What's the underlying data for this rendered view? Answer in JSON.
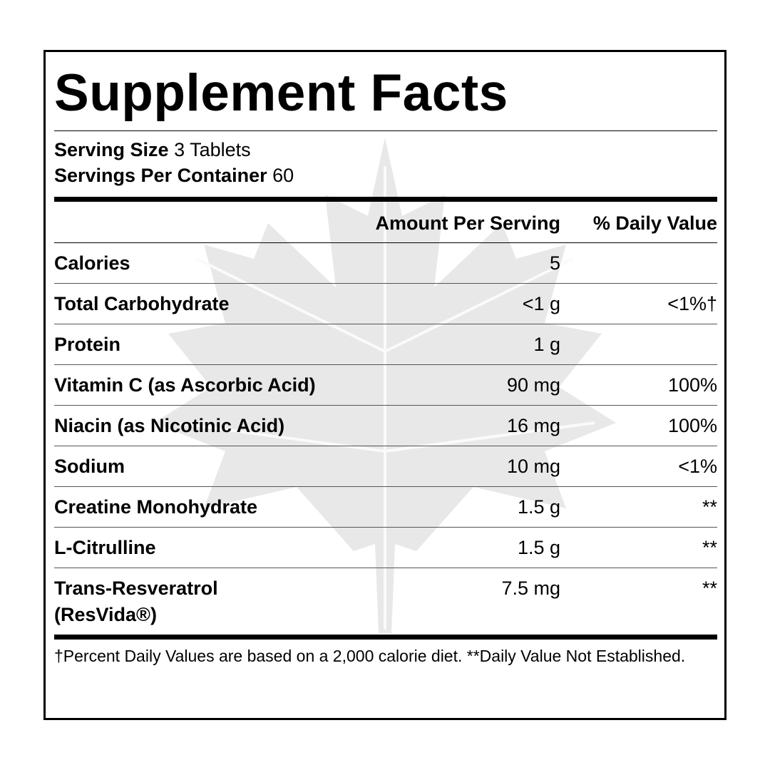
{
  "header": {
    "title": "Supplement Facts"
  },
  "serving": {
    "size_label": "Serving Size",
    "size_value": "3 Tablets",
    "per_container_label": "Servings Per Container",
    "per_container_value": "60"
  },
  "table": {
    "columns": [
      "Amount Per Serving",
      "% Daily Value"
    ],
    "rows": [
      {
        "name": "Calories",
        "amount": "5"
      },
      {
        "name": "Total Carbohydrate",
        "amount": "<1 g",
        "dv": "<1%†"
      },
      {
        "name": "Protein",
        "amount": "1 g"
      },
      {
        "name": "Vitamin C (as Ascorbic Acid)",
        "amount": "90 mg",
        "dv": "100%"
      },
      {
        "name": "Niacin (as Nicotinic Acid)",
        "amount": "16 mg",
        "dv": "100%"
      },
      {
        "name": "Sodium",
        "amount": "10 mg",
        "dv": "<1%"
      },
      {
        "name": "Creatine Monohydrate",
        "amount": "1.5 g",
        "dv": "**"
      },
      {
        "name": "L-Citrulline",
        "amount": "1.5 g",
        "dv": "**"
      },
      {
        "name": "Trans-Resveratrol (ResVida®)",
        "amount": "7.5 mg",
        "dv": "**"
      }
    ]
  },
  "footnote": "†Percent Daily Values are based on a 2,000 calorie diet. **Daily Value Not Established."
}
